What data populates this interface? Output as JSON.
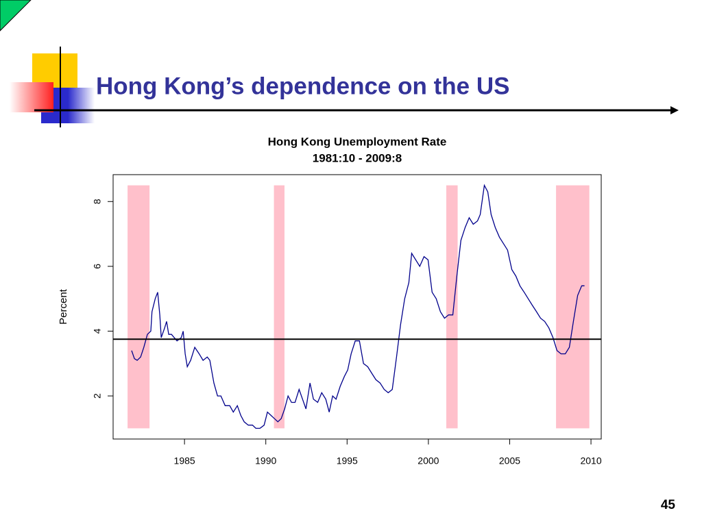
{
  "slide": {
    "title": "Hong Kong’s dependence on the US",
    "page_number": "45"
  },
  "chart_data": {
    "type": "line",
    "title": "Hong Kong Unemployment Rate",
    "subtitle": "1981:10 - 2009:8",
    "ylabel": "Percent",
    "color": "#00008b",
    "x": [
      1981.75,
      1981.92,
      1982.09,
      1982.3,
      1982.5,
      1982.72,
      1982.93,
      1983.0,
      1983.2,
      1983.35,
      1983.48,
      1983.57,
      1983.78,
      1983.9,
      1984.03,
      1984.2,
      1984.54,
      1984.8,
      1984.92,
      1985.04,
      1985.17,
      1985.38,
      1985.63,
      1985.9,
      1986.14,
      1986.4,
      1986.56,
      1986.81,
      1987.03,
      1987.24,
      1987.5,
      1987.78,
      1988.0,
      1988.25,
      1988.46,
      1988.67,
      1988.92,
      1989.18,
      1989.39,
      1989.64,
      1989.9,
      1990.1,
      1990.32,
      1990.53,
      1990.74,
      1990.95,
      1991.16,
      1991.37,
      1991.58,
      1991.8,
      1992.05,
      1992.26,
      1992.47,
      1992.72,
      1992.93,
      1993.19,
      1993.44,
      1993.69,
      1993.9,
      1994.11,
      1994.32,
      1994.58,
      1994.83,
      1995.04,
      1995.25,
      1995.5,
      1995.76,
      1996.01,
      1996.27,
      1996.52,
      1996.77,
      1997.03,
      1997.28,
      1997.53,
      1997.78,
      1998.04,
      1998.29,
      1998.54,
      1998.8,
      1998.97,
      1999.22,
      1999.47,
      1999.73,
      1999.98,
      2000.23,
      2000.48,
      2000.74,
      2000.99,
      2001.24,
      2001.5,
      2001.75,
      2002.0,
      2002.26,
      2002.51,
      2002.76,
      2003.02,
      2003.19,
      2003.44,
      2003.65,
      2003.86,
      2004.11,
      2004.37,
      2004.62,
      2004.87,
      2005.13,
      2005.38,
      2005.63,
      2005.89,
      2006.14,
      2006.39,
      2006.65,
      2006.9,
      2007.15,
      2007.41,
      2007.66,
      2007.91,
      2008.16,
      2008.42,
      2008.67,
      2008.92,
      2009.18,
      2009.43,
      2009.6
    ],
    "values": [
      3.4,
      3.15,
      3.1,
      3.2,
      3.5,
      3.9,
      4.0,
      4.6,
      5.0,
      5.2,
      4.5,
      3.8,
      4.1,
      4.3,
      3.9,
      3.9,
      3.7,
      3.8,
      4.0,
      3.3,
      2.9,
      3.1,
      3.5,
      3.3,
      3.1,
      3.2,
      3.1,
      2.4,
      2.0,
      2.0,
      1.7,
      1.7,
      1.5,
      1.7,
      1.4,
      1.2,
      1.1,
      1.1,
      1.0,
      1.0,
      1.1,
      1.5,
      1.4,
      1.3,
      1.2,
      1.3,
      1.6,
      2.0,
      1.8,
      1.8,
      2.2,
      1.9,
      1.6,
      2.4,
      1.9,
      1.8,
      2.1,
      1.9,
      1.5,
      2.0,
      1.9,
      2.3,
      2.6,
      2.8,
      3.3,
      3.7,
      3.7,
      3.0,
      2.9,
      2.7,
      2.5,
      2.4,
      2.2,
      2.1,
      2.2,
      3.2,
      4.2,
      5.0,
      5.5,
      6.4,
      6.2,
      6.0,
      6.3,
      6.2,
      5.2,
      5.0,
      4.6,
      4.4,
      4.5,
      4.5,
      5.7,
      6.8,
      7.2,
      7.5,
      7.3,
      7.4,
      7.6,
      8.5,
      8.3,
      7.6,
      7.2,
      6.9,
      6.7,
      6.5,
      5.9,
      5.7,
      5.4,
      5.2,
      5.0,
      4.8,
      4.6,
      4.4,
      4.3,
      4.1,
      3.8,
      3.4,
      3.3,
      3.3,
      3.5,
      4.3,
      5.1,
      5.4,
      5.4
    ],
    "recessions": [
      [
        1981.5,
        1982.85
      ],
      [
        1990.5,
        1991.15
      ],
      [
        2001.1,
        2001.8
      ],
      [
        2007.85,
        2009.9
      ]
    ],
    "recession_color": "#ffc0cb",
    "hline": 3.75,
    "xlim": [
      1980.61,
      2010.63
    ],
    "ylim": [
      0.67,
      8.83
    ],
    "xticks": [
      1985,
      1990,
      1995,
      2000,
      2005,
      2010
    ],
    "yticks": [
      2,
      4,
      6,
      8
    ]
  }
}
